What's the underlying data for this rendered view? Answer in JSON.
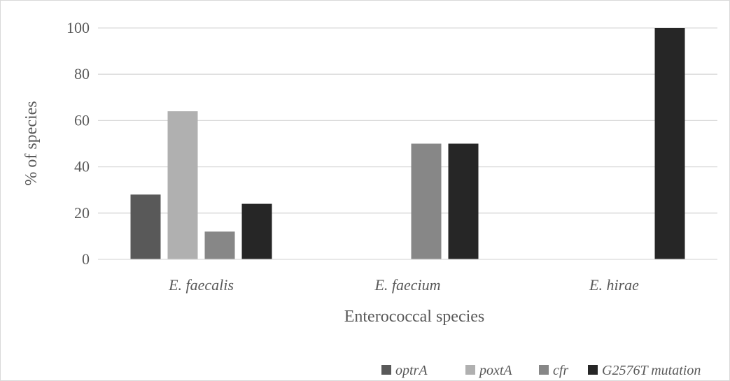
{
  "chart_data": {
    "type": "bar",
    "categories": [
      "E. faecalis",
      "E. faecium",
      "E. hirae"
    ],
    "series": [
      {
        "name": "optrA",
        "values": [
          28,
          0,
          0
        ],
        "color": "#595959"
      },
      {
        "name": "poxtA",
        "values": [
          64,
          0,
          0
        ],
        "color": "#b0b0b0"
      },
      {
        "name": "cfr",
        "values": [
          12,
          50,
          0
        ],
        "color": "#878787"
      },
      {
        "name": "G2576T mutation",
        "values": [
          24,
          50,
          100
        ],
        "color": "#262626"
      }
    ],
    "xlabel": "Enterococcal species",
    "ylabel": "% of species",
    "ylim": [
      0,
      100
    ],
    "yticks": [
      0,
      20,
      40,
      60,
      80,
      100
    ],
    "grid": true,
    "legend": "bottom-right"
  }
}
